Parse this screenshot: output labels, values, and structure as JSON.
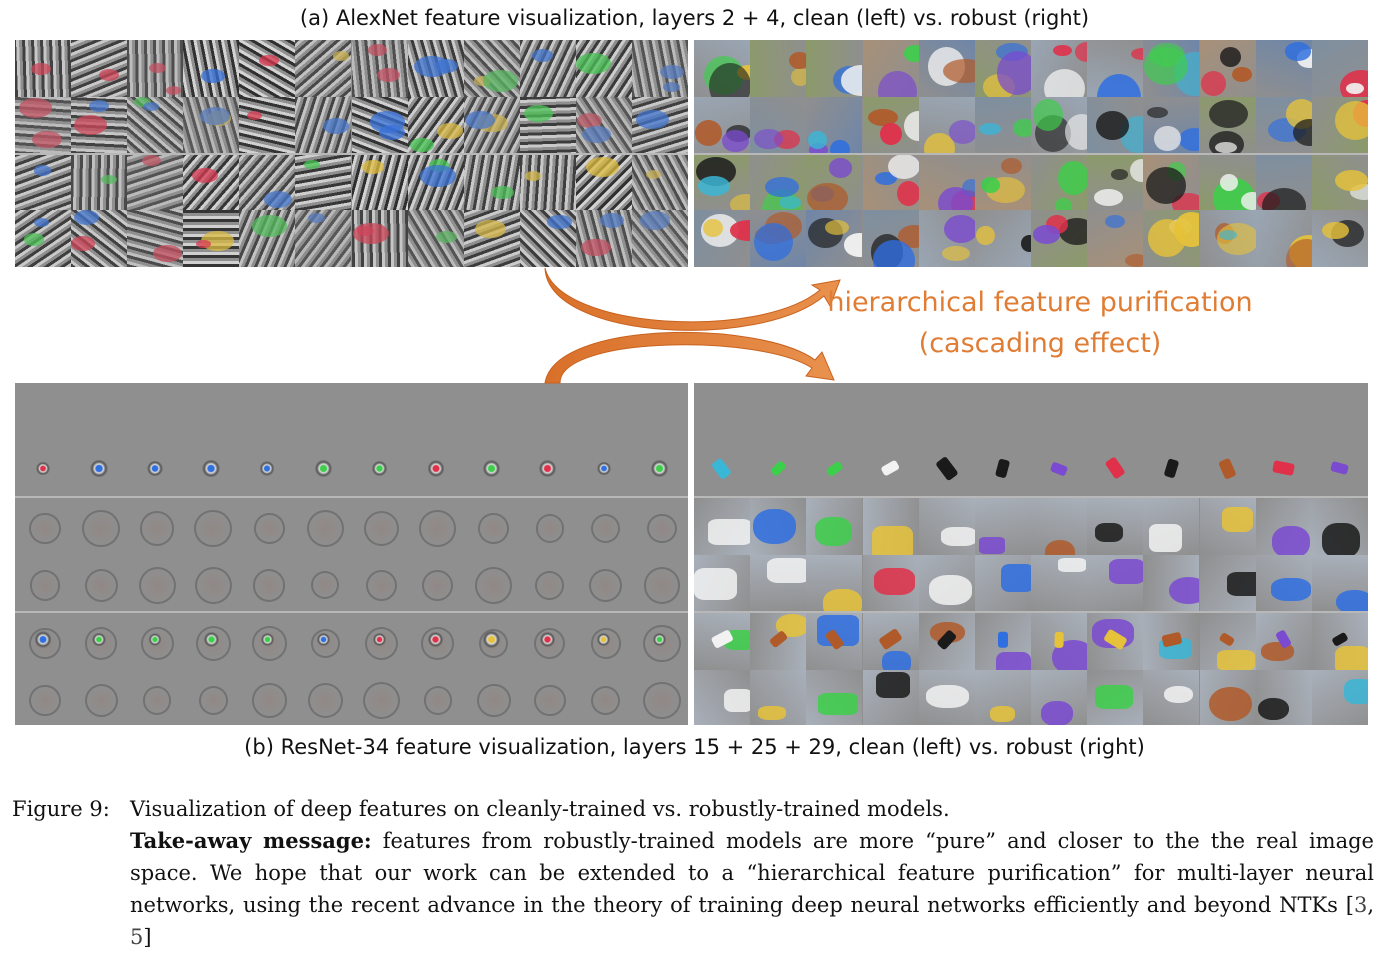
{
  "caption_a": "(a) AlexNet feature visualization, layers 2 + 4, clean (left) vs. robust (right)",
  "caption_b": "(b) ResNet-34 feature visualization, layers 15 + 25 + 29, clean (left) vs. robust (right)",
  "annotation": {
    "line1": "hierarchical feature purification",
    "line2": "(cascading effect)",
    "color": "#e07d35"
  },
  "figure": {
    "label": "Figure 9:",
    "title": "Visualization of deep features on cleanly-trained vs. robustly-trained models.",
    "takeaway_label": "Take-away message:",
    "takeaway_text": "features from robustly-trained models are more “pure” and closer to the the real image space. We hope that our work can be extended to a “hierarchical feature purification” for multi-layer neural networks, using the recent advance in the theory of training deep neural networks efficiently and beyond NTKs [",
    "cite_1": "3",
    "cite_sep": ", ",
    "cite_2": "5",
    "cite_end": "]"
  }
}
